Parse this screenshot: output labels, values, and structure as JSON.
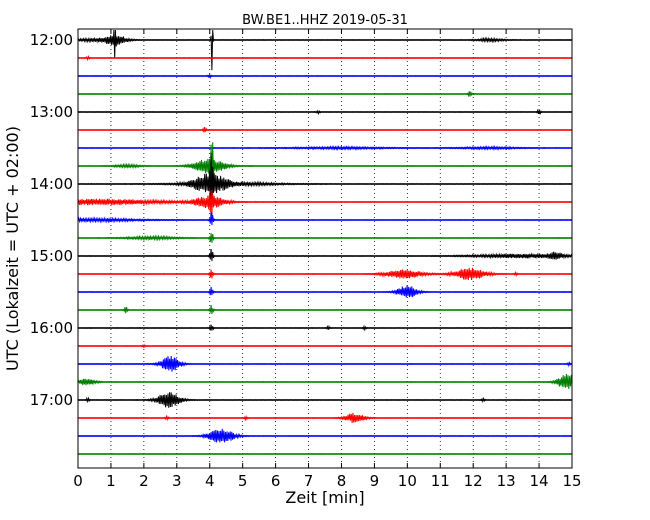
{
  "chart_data": {
    "type": "line",
    "title": "BW.BE1..HHZ 2019-05-31",
    "xlabel": "Zeit  [min]",
    "ylabel": "UTC (Lokalzeit = UTC + 02:00)",
    "xlim": [
      0,
      15
    ],
    "x_ticks": [
      "0",
      "1",
      "2",
      "3",
      "4",
      "5",
      "6",
      "7",
      "8",
      "9",
      "10",
      "11",
      "12",
      "13",
      "14",
      "15"
    ],
    "y_ticks": [
      "12:00",
      "13:00",
      "14:00",
      "15:00",
      "16:00",
      "17:00"
    ],
    "grid": "vertical dotted",
    "trace_interval_min": 15,
    "trace_colors": [
      "#000000",
      "#ff0000",
      "#0000ff",
      "#008000"
    ],
    "series": [
      {
        "start": "12:00",
        "events": [
          {
            "t": 0.5,
            "a": 0.3,
            "w": 0.5
          },
          {
            "t": 1.15,
            "a": 1.0,
            "w": 0.35
          },
          {
            "t": 1.12,
            "a": 3.2,
            "w": 0.03
          },
          {
            "t": 4.07,
            "a": 10.0,
            "w": 0.02
          },
          {
            "t": 12.5,
            "a": 0.3,
            "w": 0.4
          }
        ]
      },
      {
        "start": "12:15",
        "events": [
          {
            "t": 0.3,
            "a": 0.3,
            "w": 0.05
          }
        ]
      },
      {
        "start": "12:30",
        "events": [
          {
            "t": 4.0,
            "a": 0.3,
            "w": 0.05
          }
        ]
      },
      {
        "start": "12:45",
        "events": [
          {
            "t": 11.9,
            "a": 0.6,
            "w": 0.05
          }
        ]
      },
      {
        "start": "13:00",
        "events": [
          {
            "t": 14.0,
            "a": 0.6,
            "w": 0.05
          },
          {
            "t": 7.3,
            "a": 0.3,
            "w": 0.05
          }
        ]
      },
      {
        "start": "13:15",
        "events": [
          {
            "t": 3.85,
            "a": 0.6,
            "w": 0.05
          }
        ]
      },
      {
        "start": "13:30",
        "events": [
          {
            "t": 8.0,
            "a": 0.2,
            "w": 1.5
          },
          {
            "t": 12.5,
            "a": 0.2,
            "w": 1.0
          }
        ]
      },
      {
        "start": "13:45",
        "events": [
          {
            "t": 1.5,
            "a": 0.3,
            "w": 0.4
          },
          {
            "t": 4.0,
            "a": 1.5,
            "w": 0.5
          },
          {
            "t": 4.07,
            "a": 4.0,
            "w": 0.05
          }
        ]
      },
      {
        "start": "14:00",
        "events": [
          {
            "t": 4.0,
            "a": 1.8,
            "w": 0.5
          },
          {
            "t": 4.05,
            "a": 5.0,
            "w": 0.05
          },
          {
            "t": 4.5,
            "a": 0.4,
            "w": 1.5
          }
        ]
      },
      {
        "start": "14:15",
        "events": [
          {
            "t": 0.7,
            "a": 0.6,
            "w": 2.0
          },
          {
            "t": 4.0,
            "a": 1.2,
            "w": 0.5
          },
          {
            "t": 4.05,
            "a": 2.8,
            "w": 0.05
          }
        ]
      },
      {
        "start": "14:30",
        "events": [
          {
            "t": 0.5,
            "a": 0.3,
            "w": 1.5
          },
          {
            "t": 4.05,
            "a": 1.8,
            "w": 0.05
          }
        ]
      },
      {
        "start": "14:45",
        "events": [
          {
            "t": 2.2,
            "a": 0.3,
            "w": 0.8
          },
          {
            "t": 4.05,
            "a": 1.5,
            "w": 0.05
          }
        ]
      },
      {
        "start": "15:00",
        "events": [
          {
            "t": 4.05,
            "a": 1.5,
            "w": 0.05
          },
          {
            "t": 13.5,
            "a": 0.4,
            "w": 1.5
          },
          {
            "t": 14.5,
            "a": 0.6,
            "w": 0.2
          }
        ]
      },
      {
        "start": "15:15",
        "events": [
          {
            "t": 4.05,
            "a": 1.0,
            "w": 0.05
          },
          {
            "t": 9.9,
            "a": 0.9,
            "w": 0.6
          },
          {
            "t": 11.9,
            "a": 1.2,
            "w": 0.5
          },
          {
            "t": 13.3,
            "a": 0.3,
            "w": 0.05
          }
        ]
      },
      {
        "start": "15:30",
        "events": [
          {
            "t": 4.05,
            "a": 1.0,
            "w": 0.05
          },
          {
            "t": 10.0,
            "a": 1.4,
            "w": 0.3
          }
        ]
      },
      {
        "start": "15:45",
        "events": [
          {
            "t": 1.45,
            "a": 0.7,
            "w": 0.05
          },
          {
            "t": 4.05,
            "a": 1.0,
            "w": 0.05
          }
        ]
      },
      {
        "start": "16:00",
        "events": [
          {
            "t": 4.05,
            "a": 0.8,
            "w": 0.05
          },
          {
            "t": 7.6,
            "a": 0.3,
            "w": 0.05
          },
          {
            "t": 8.7,
            "a": 0.3,
            "w": 0.05
          }
        ]
      },
      {
        "start": "16:15",
        "events": [
          {
            "t": 2.0,
            "a": 0.2,
            "w": 0.05
          }
        ]
      },
      {
        "start": "16:30",
        "events": [
          {
            "t": 2.8,
            "a": 1.6,
            "w": 0.3
          },
          {
            "t": 14.9,
            "a": 0.3,
            "w": 0.05
          }
        ]
      },
      {
        "start": "16:45",
        "events": [
          {
            "t": 0.25,
            "a": 0.6,
            "w": 0.3
          },
          {
            "t": 14.85,
            "a": 1.6,
            "w": 0.3
          }
        ]
      },
      {
        "start": "17:00",
        "events": [
          {
            "t": 0.3,
            "a": 0.4,
            "w": 0.05
          },
          {
            "t": 2.75,
            "a": 1.6,
            "w": 0.35
          },
          {
            "t": 12.3,
            "a": 0.3,
            "w": 0.05
          }
        ]
      },
      {
        "start": "17:15",
        "events": [
          {
            "t": 2.7,
            "a": 0.3,
            "w": 0.05
          },
          {
            "t": 5.1,
            "a": 0.4,
            "w": 0.05
          },
          {
            "t": 8.4,
            "a": 1.0,
            "w": 0.3
          }
        ]
      },
      {
        "start": "17:30",
        "events": [
          {
            "t": 4.35,
            "a": 1.5,
            "w": 0.4
          }
        ]
      },
      {
        "start": "17:45",
        "events": []
      }
    ]
  }
}
